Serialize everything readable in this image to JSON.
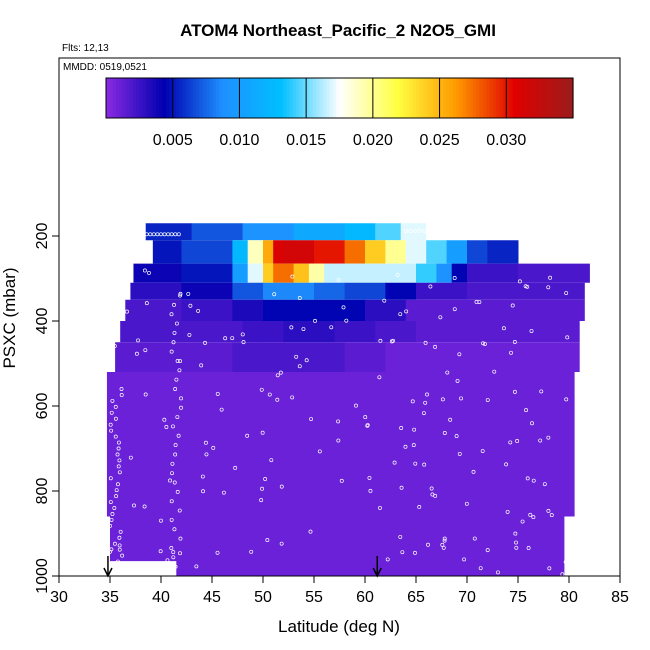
{
  "chart_data": {
    "type": "heatmap",
    "title": "ATOM4 Northeast_Pacific_2 N2O5_GMI",
    "flights_note": "Flts: 12,13",
    "dates_note": "MMDD: 0519,0521",
    "xlabel": "Latitude (deg N)",
    "ylabel": "PSXC (mbar)",
    "xlim": [
      30,
      85
    ],
    "ylim": [
      1000,
      0
    ],
    "x_ticks": [
      30,
      35,
      40,
      45,
      50,
      55,
      60,
      65,
      70,
      75,
      80,
      85
    ],
    "y_ticks": [
      200,
      400,
      600,
      800,
      1000
    ],
    "colorbar": {
      "ticks": [
        0.005,
        0.01,
        0.015,
        0.02,
        0.025,
        0.03
      ],
      "tick_labels": [
        "0.005",
        "0.010",
        "0.015",
        "0.020",
        "0.025",
        "0.030"
      ],
      "range": [
        0.0,
        0.035
      ],
      "colors": [
        "#8a2be2",
        "#0000b0",
        "#1e90ff",
        "#00bfff",
        "#ffffff",
        "#ffff40",
        "#ff9900",
        "#e00000",
        "#9b1c1c"
      ]
    },
    "arrows_lat": [
      34.8,
      61.2
    ],
    "bands": [
      {
        "p_top": 170,
        "p_bot": 210,
        "x0": 38.5,
        "x1": 68.5,
        "segments": [
          [
            38.5,
            0.005
          ],
          [
            43,
            0.006
          ],
          [
            48,
            0.008
          ],
          [
            53,
            0.01
          ],
          [
            58,
            0.012
          ],
          [
            61,
            0.013
          ],
          [
            63.5,
            0.016
          ],
          [
            66,
            0.018
          ],
          [
            68.5,
            0.017
          ]
        ]
      },
      {
        "p_top": 210,
        "p_bot": 265,
        "x0": 39.2,
        "x1": 75.0,
        "segments": [
          [
            39.2,
            0.005
          ],
          [
            42,
            0.005
          ],
          [
            47,
            0.008
          ],
          [
            48.5,
            0.017
          ],
          [
            50,
            0.021
          ],
          [
            51,
            0.03
          ],
          [
            52,
            0.032
          ],
          [
            55,
            0.031
          ],
          [
            58,
            0.029
          ],
          [
            60,
            0.026
          ],
          [
            62,
            0.022
          ],
          [
            64,
            0.018
          ],
          [
            66,
            0.016
          ],
          [
            68,
            0.013
          ],
          [
            70,
            0.007
          ],
          [
            72,
            0.006
          ],
          [
            75,
            0.005
          ]
        ]
      },
      {
        "p_top": 265,
        "p_bot": 310,
        "x0": 37.3,
        "x1": 82.0,
        "segments": [
          [
            37.3,
            0.004
          ],
          [
            42,
            0.004
          ],
          [
            47,
            0.006
          ],
          [
            48.5,
            0.014
          ],
          [
            50,
            0.02
          ],
          [
            51,
            0.028
          ],
          [
            53,
            0.027
          ],
          [
            54.5,
            0.022
          ],
          [
            56,
            0.017
          ],
          [
            59,
            0.016
          ],
          [
            62,
            0.017
          ],
          [
            65,
            0.016
          ],
          [
            67,
            0.012
          ],
          [
            68.5,
            0.006
          ],
          [
            70,
            0.003
          ],
          [
            75,
            0.002
          ],
          [
            82,
            0.002
          ]
        ]
      },
      {
        "p_top": 310,
        "p_bot": 350,
        "x0": 37.0,
        "x1": 81.5,
        "segments": [
          [
            37,
            0.003
          ],
          [
            42,
            0.003
          ],
          [
            47,
            0.005
          ],
          [
            50,
            0.009
          ],
          [
            55,
            0.008
          ],
          [
            58,
            0.007
          ],
          [
            62,
            0.006
          ],
          [
            65,
            0.003
          ],
          [
            70,
            0.002
          ],
          [
            81.5,
            0.002
          ]
        ]
      },
      {
        "p_top": 350,
        "p_bot": 400,
        "x0": 36.5,
        "x1": 81.5,
        "segments": [
          [
            36.5,
            0.002
          ],
          [
            42,
            0.002
          ],
          [
            47,
            0.003
          ],
          [
            50,
            0.004
          ],
          [
            55,
            0.005
          ],
          [
            60,
            0.004
          ],
          [
            64,
            0.002
          ],
          [
            81.5,
            0.001
          ]
        ]
      },
      {
        "p_top": 400,
        "p_bot": 450,
        "x0": 36.0,
        "x1": 81.0,
        "segments": [
          [
            36,
            0.002
          ],
          [
            42,
            0.002
          ],
          [
            48,
            0.002
          ],
          [
            52,
            0.003
          ],
          [
            57,
            0.003
          ],
          [
            61,
            0.002
          ],
          [
            65,
            0.002
          ],
          [
            81,
            0.001
          ]
        ]
      },
      {
        "p_top": 450,
        "p_bot": 520,
        "x0": 35.5,
        "x1": 81.0,
        "segments": [
          [
            35.5,
            0.001
          ],
          [
            47,
            0.002
          ],
          [
            50,
            0.002
          ],
          [
            54,
            0.002
          ],
          [
            58,
            0.002
          ],
          [
            62,
            0.001
          ],
          [
            81,
            0.001
          ]
        ]
      },
      {
        "p_top": 520,
        "p_bot": 860,
        "x0": 34.7,
        "x1": 80.5,
        "segments": [
          [
            34.7,
            0.001
          ],
          [
            80.5,
            0.001
          ]
        ]
      },
      {
        "p_top": 860,
        "p_bot": 1000,
        "x0": 35.0,
        "x1": 79.5,
        "segments": [
          [
            35,
            0.001
          ],
          [
            79.5,
            0.001
          ]
        ]
      }
    ]
  }
}
